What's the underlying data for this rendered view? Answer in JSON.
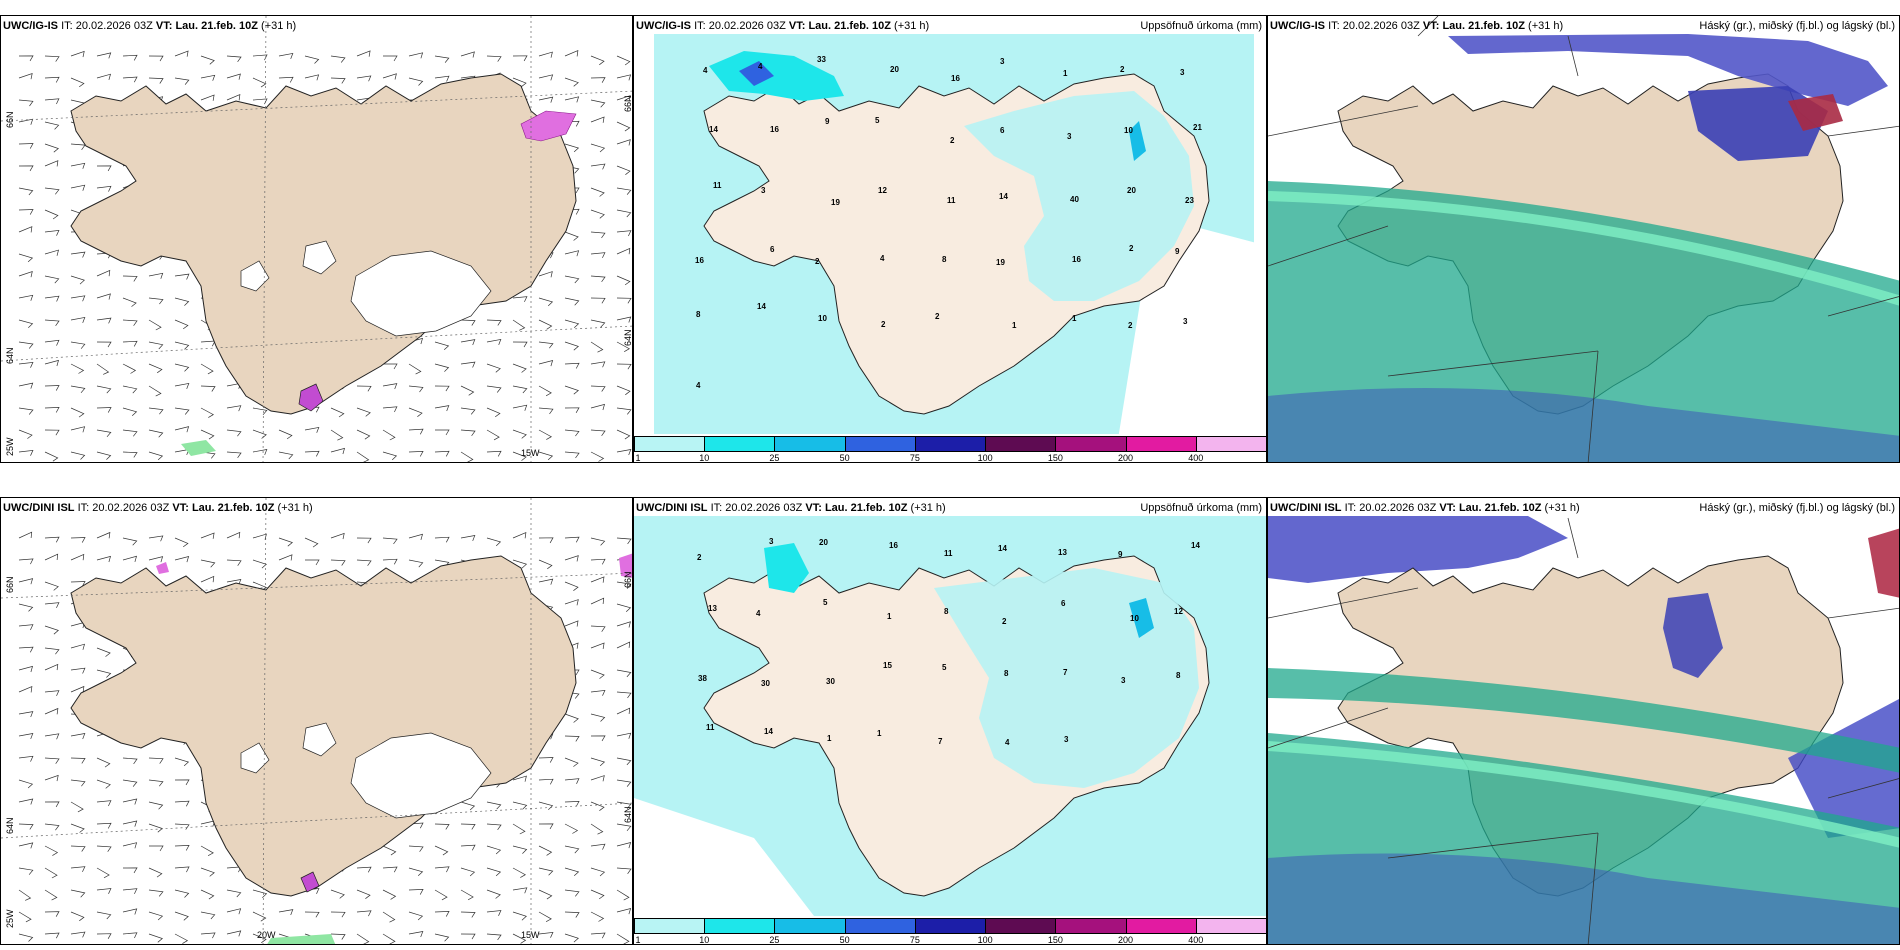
{
  "panels": [
    {
      "row": "top",
      "model": "UWC/IG-IS",
      "it_label": "IT:",
      "it": "20.02.2026 03Z",
      "vt_label": "VT:",
      "vt": "Lau. 21.feb. 10Z",
      "lead": "(+31 h)",
      "lat_labels": [
        "66N",
        "64N"
      ],
      "lon_labels": [
        "25W",
        "15W"
      ],
      "right_lat_labels": [
        "66N",
        "64N"
      ],
      "precip_title": "Uppsöfnuð úrkoma (mm)",
      "cloud_title": "Háský (gr.), miðský (fj.bl.) og lágský (bl.)",
      "precip_values": [
        "4",
        "4",
        "33",
        "20",
        "16",
        "3",
        "1",
        "2",
        "3",
        "14",
        "16",
        "9",
        "5",
        "2",
        "6",
        "3",
        "10",
        "21",
        "11",
        "3",
        "19",
        "12",
        "11",
        "14",
        "40",
        "20",
        "23",
        "16",
        "6",
        "2",
        "4",
        "8",
        "19",
        "16",
        "2",
        "9",
        "8",
        "14",
        "10",
        "2",
        "2",
        "1",
        "1",
        "2",
        "3",
        "4"
      ]
    },
    {
      "row": "bottom",
      "model": "UWC/DINI ISL",
      "it_label": "IT:",
      "it": "20.02.2026 03Z",
      "vt_label": "VT:",
      "vt": "Lau. 21.feb. 10Z",
      "lead": "(+31 h)",
      "lat_labels": [
        "66N",
        "64N"
      ],
      "lon_labels": [
        "25W",
        "20W",
        "15W"
      ],
      "right_lat_labels": [
        "66N",
        "64N"
      ],
      "precip_title": "Uppsöfnuð úrkoma (mm)",
      "cloud_title": "Háský (gr.), miðský (fj.bl.) og lágský (bl.)",
      "precip_values": [
        "2",
        "3",
        "20",
        "16",
        "11",
        "14",
        "13",
        "9",
        "14",
        "13",
        "4",
        "5",
        "1",
        "8",
        "2",
        "6",
        "10",
        "12",
        "38",
        "30",
        "30",
        "15",
        "5",
        "8",
        "7",
        "3",
        "8",
        "11",
        "14",
        "1",
        "1",
        "7",
        "4",
        "3"
      ]
    }
  ],
  "colorbar": {
    "ticks": [
      "1",
      "10",
      "25",
      "50",
      "75",
      "100",
      "150",
      "200",
      "400"
    ],
    "colors": [
      "#b8f4f4",
      "#1ee6ea",
      "#17bde7",
      "#2f62e0",
      "#1c1ea8",
      "#5e0b52",
      "#a5117d",
      "#e21ba1",
      "#f3b4ee"
    ]
  },
  "colors": {
    "land": "#e8d5bf",
    "land_precip": "#f8ece0",
    "precip_light": "#b6f3f4",
    "cloud_high": "#1fa88c",
    "cloud_mid": "#5257c9"
  }
}
